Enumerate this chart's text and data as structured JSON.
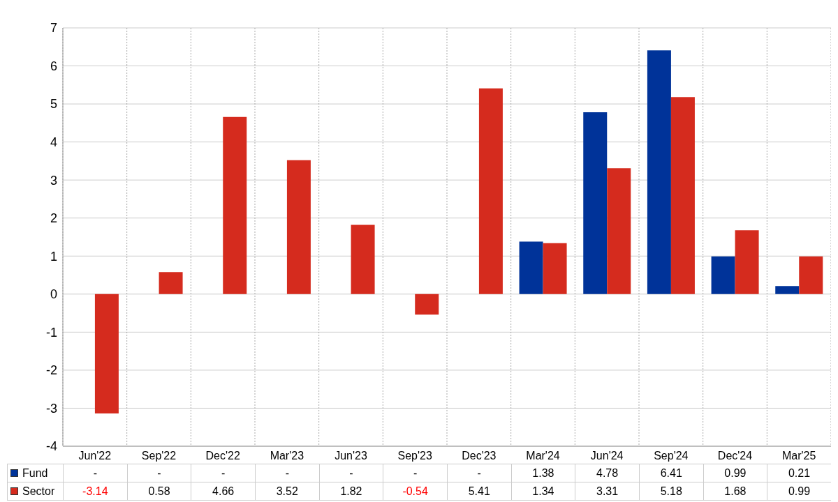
{
  "chart_data": {
    "type": "bar",
    "categories": [
      "Jun'22",
      "Sep'22",
      "Dec'22",
      "Mar'23",
      "Jun'23",
      "Sep'23",
      "Dec'23",
      "Mar'24",
      "Jun'24",
      "Sep'24",
      "Dec'24",
      "Mar'25"
    ],
    "series": [
      {
        "name": "Fund",
        "color": "#003399",
        "values": [
          null,
          null,
          null,
          null,
          null,
          null,
          null,
          1.38,
          4.78,
          6.41,
          0.99,
          0.21
        ],
        "value_labels": [
          "-",
          "-",
          "-",
          "-",
          "-",
          "-",
          "-",
          "1.38",
          "4.78",
          "6.41",
          "0.99",
          "0.21"
        ]
      },
      {
        "name": "Sector",
        "color": "#d52b1e",
        "values": [
          -3.14,
          0.58,
          4.66,
          3.52,
          1.82,
          -0.54,
          5.41,
          1.34,
          3.31,
          5.18,
          1.68,
          0.99
        ],
        "value_labels": [
          "-3.14",
          "0.58",
          "4.66",
          "3.52",
          "1.82",
          "-0.54",
          "5.41",
          "1.34",
          "3.31",
          "5.18",
          "1.68",
          "0.99"
        ]
      }
    ],
    "ylim": [
      -4,
      7
    ],
    "yticks": [
      -4,
      -3,
      -2,
      -1,
      0,
      1,
      2,
      3,
      4,
      5,
      6,
      7
    ],
    "grid": true,
    "legend": "bottom"
  }
}
